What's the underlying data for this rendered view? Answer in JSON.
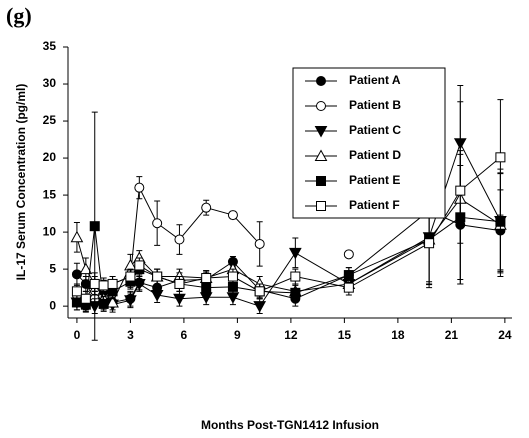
{
  "panel_label": "(g)",
  "chart_data": {
    "type": "line",
    "y_label": "IL-17 Serum Concentration (pg/ml)",
    "x_label": "Months Post-TGN1412 Infusion",
    "x": [
      0,
      0.5,
      1,
      1.5,
      2,
      3,
      3.5,
      4.5,
      5.75,
      7.25,
      8.75,
      10.25,
      12.25,
      15.25,
      19.75,
      21.5,
      23.75
    ],
    "xlim": [
      -0.5,
      24.4
    ],
    "xticks": [
      0,
      3,
      6,
      9,
      12,
      15,
      18,
      21,
      24
    ],
    "ylim": [
      -1.6,
      35
    ],
    "yticks": [
      0,
      5,
      10,
      15,
      20,
      25,
      30,
      35
    ],
    "grid": false,
    "legend": "upper right",
    "series": [
      {
        "name": "Patient A",
        "color": "#000000",
        "marker": "circle",
        "filled": true,
        "values": [
          4.3,
          3,
          1,
          2,
          0.5,
          1,
          3.2,
          2.5,
          3.5,
          3.6,
          6,
          2.2,
          1,
          4.2,
          12.9,
          11,
          10.2
        ],
        "errors": [
          1.5,
          1,
          1,
          1,
          0.5,
          1,
          1,
          1,
          1,
          1,
          0.7,
          1,
          1,
          1,
          10,
          8,
          5.5
        ]
      },
      {
        "name": "Patient B",
        "color": "#000000",
        "marker": "circle",
        "filled": false,
        "values": [
          1.5,
          0.5,
          1,
          2.5,
          3,
          4,
          16,
          11.2,
          9,
          13.3,
          12.3,
          8.4,
          null,
          7,
          null,
          null,
          null
        ],
        "errors": [
          1,
          1,
          1,
          1,
          1,
          1.5,
          1.5,
          3,
          2,
          1,
          0.5,
          3,
          null,
          null,
          null,
          null,
          null
        ]
      },
      {
        "name": "Patient C",
        "color": "#000000",
        "marker": "triangle-down",
        "filled": true,
        "values": [
          0.5,
          0.3,
          0,
          0.5,
          0.2,
          0.8,
          3,
          1.5,
          1,
          1.2,
          1.2,
          0,
          7.2,
          3,
          9.3,
          22,
          11.5
        ],
        "errors": [
          1,
          1,
          1,
          1,
          1,
          1,
          1,
          1,
          1,
          1,
          1,
          1,
          2,
          1,
          6,
          7.8,
          7
        ]
      },
      {
        "name": "Patient D",
        "color": "#000000",
        "marker": "triangle-up",
        "filled": false,
        "values": [
          9.3,
          5,
          3,
          1,
          0.5,
          5.5,
          6.5,
          4,
          4,
          3.8,
          5,
          3,
          2,
          3,
          9,
          14.5,
          11
        ],
        "errors": [
          2,
          1.5,
          1.5,
          1,
          1,
          1.5,
          1,
          1,
          1,
          1,
          1,
          1,
          1,
          1,
          6,
          6,
          7
        ]
      },
      {
        "name": "Patient E",
        "color": "#000000",
        "marker": "square",
        "filled": true,
        "values": [
          0.5,
          0.2,
          10.8,
          0.3,
          2,
          3.3,
          5,
          4,
          3,
          2.5,
          2.6,
          2,
          1.8,
          4.2,
          9,
          12,
          11.4
        ],
        "errors": [
          1,
          1,
          15.4,
          1,
          1,
          1,
          1,
          1,
          1,
          1,
          1,
          1,
          1,
          1,
          6,
          9,
          6.5
        ]
      },
      {
        "name": "Patient F",
        "color": "#000000",
        "marker": "square",
        "filled": false,
        "values": [
          2,
          1,
          3,
          2.8,
          3,
          4,
          5.5,
          4,
          3,
          3.8,
          4,
          2,
          4,
          2.5,
          8.5,
          15.6,
          20.1
        ],
        "errors": [
          1,
          1,
          1,
          1,
          1,
          1,
          1,
          1,
          1,
          1,
          1,
          1,
          1,
          1,
          6,
          12,
          7.8
        ]
      }
    ]
  }
}
